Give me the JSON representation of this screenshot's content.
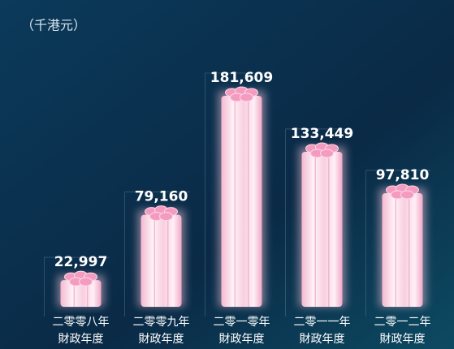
{
  "chart_data": {
    "type": "bar",
    "unit_label": "（千港元）",
    "categories": [
      [
        "二零零八年",
        "財政年度"
      ],
      [
        "二零零九年",
        "財政年度"
      ],
      [
        "二零一零年",
        "財政年度"
      ],
      [
        "二零一一年",
        "財政年度"
      ],
      [
        "二零一二年",
        "財政年度"
      ]
    ],
    "values": [
      22997,
      79160,
      181609,
      133449,
      97810
    ],
    "value_labels": [
      "22,997",
      "79,160",
      "181,609",
      "133,449",
      "97,810"
    ],
    "color": "#f7c6dc"
  }
}
